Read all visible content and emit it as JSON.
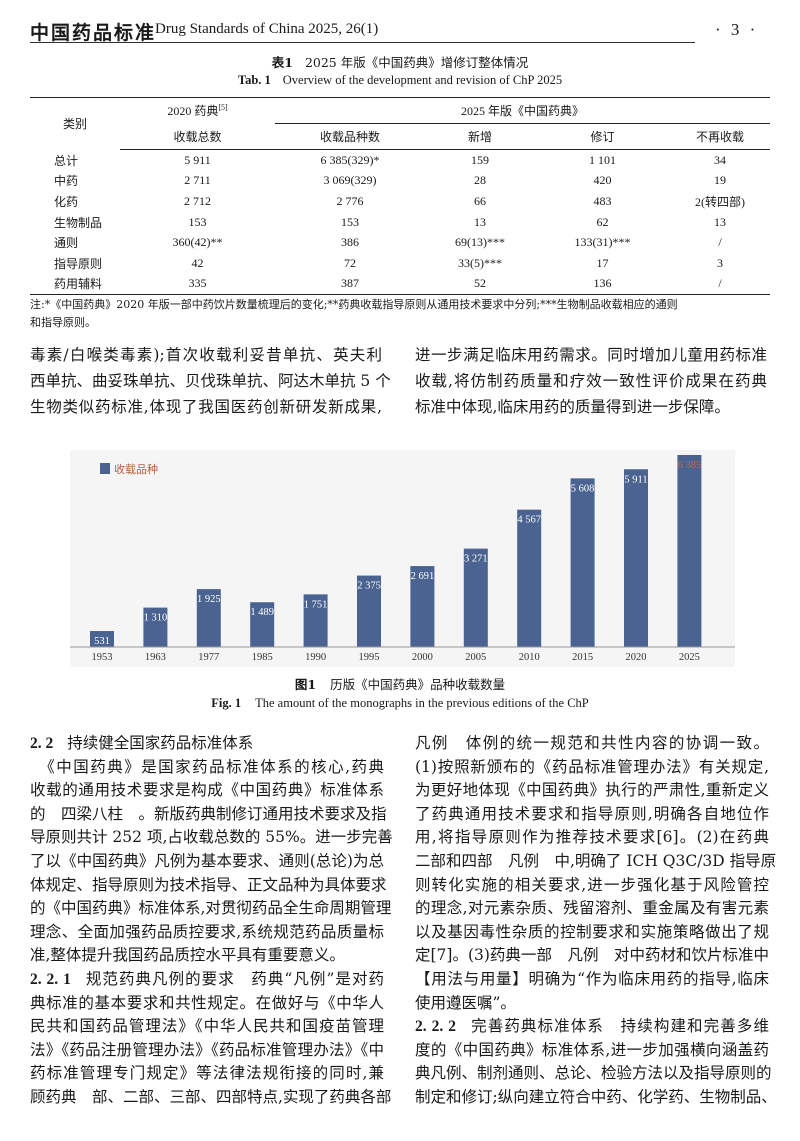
{
  "header": {
    "journal_cn": "中国药品标准",
    "journal_en": "Drug Standards of China 2025, 26(1)",
    "page": "· 3 ·"
  },
  "table": {
    "caption_cn_label": "表1",
    "caption_cn": "2025 年版《中国药典》增修订整体情况",
    "caption_en_label": "Tab. 1",
    "caption_en": "Overview of the development and revision of ChP 2025",
    "head": {
      "category": "类别",
      "col2020_top": "2020 药典",
      "col2020_ref": "[5]",
      "col2020_bottom": "收载总数",
      "group2025": "2025 年版《中国药典》",
      "cols2025": [
        "收载品种数",
        "新增",
        "修订",
        "不再收载"
      ]
    },
    "rows": [
      [
        "总计",
        "5 911",
        "6 385(329)*",
        "159",
        "1 101",
        "34"
      ],
      [
        "中药",
        "2 711",
        "3 069(329)",
        "28",
        "420",
        "19"
      ],
      [
        "化药",
        "2 712",
        "2 776",
        "66",
        "483",
        "2(转四部)"
      ],
      [
        "生物制品",
        "153",
        "153",
        "13",
        "62",
        "13"
      ],
      [
        "通则",
        "360(42)**",
        "386",
        "69(13)***",
        "133(31)***",
        "/"
      ],
      [
        "指导原则",
        "42",
        "72",
        "33(5)***",
        "17",
        "3"
      ],
      [
        "药用辅料",
        "335",
        "387",
        "52",
        "136",
        "/"
      ]
    ],
    "note_line1": "注:*《中国药典》2020 年版一部中药饮片数量梳理后的变化;**药典收载指导原则从通用技术要求中分列;***生物制品收载相应的通则",
    "note_line2": "和指导原则。"
  },
  "upper_text": {
    "left": [
      "毒素/白喉类毒素);首次收载利妥昔单抗、英夫利",
      "西单抗、曲妥珠单抗、贝伐珠单抗、阿达木单抗 5 个",
      "生物类似药标准,体现了我国医药创新研发新成果,"
    ],
    "right": [
      "进一步满足临床用药需求。同时增加儿童用药标准",
      "收载,将仿制药质量和疗效一致性评价成果在药典",
      "标准中体现,临床用药的质量得到进一步保障。"
    ]
  },
  "chart_data": {
    "type": "bar",
    "categories": [
      "1953",
      "1963",
      "1977",
      "1985",
      "1990",
      "1995",
      "2000",
      "2005",
      "2010",
      "2015",
      "2020",
      "2025"
    ],
    "series": [
      {
        "name": "收载品种",
        "values": [
          531,
          1310,
          1925,
          1489,
          1751,
          2375,
          2691,
          3271,
          4567,
          5608,
          5911,
          6385
        ]
      }
    ],
    "value_labels": [
      "531",
      "1 310",
      "1 925",
      "1 489",
      "1 751",
      "2 375",
      "2 691",
      "3 271",
      "4 567",
      "5 608",
      "5 911",
      "6 385"
    ],
    "ylim": [
      0,
      6500
    ],
    "grid": false,
    "legend": "top-left",
    "colors": {
      "bar": "#4a6391",
      "label": "#ffffff",
      "highlight_label": "#c0664a",
      "legend_text": "#b0603a",
      "background": "#f5f5f5"
    }
  },
  "figure": {
    "label_cn": "图1",
    "caption_cn": "历版《中国药典》品种收载数量",
    "label_en": "Fig. 1",
    "caption_en": "The amount of the monographs in the previous editions of the ChP"
  },
  "body_left": [
    {
      "type": "h",
      "num": "2. 2",
      "text": "持续健全国家药品标准体系"
    },
    {
      "type": "l",
      "text": "　《中国药典》是国家药品标准体系的核心,药典"
    },
    {
      "type": "l",
      "text": "收载的通用技术要求是构成《中国药典》标准体系"
    },
    {
      "type": "l",
      "text": "的　四梁八柱　。新版药典制修订通用技术要求及指"
    },
    {
      "type": "l",
      "text": "导原则共计 252 项,占收载总数的 55%。进一步完善"
    },
    {
      "type": "l",
      "text": "了以《中国药典》凡例为基本要求、通则(总论)为总"
    },
    {
      "type": "l",
      "text": "体规定、指导原则为技术指导、正文品种为具体要求"
    },
    {
      "type": "l",
      "text": "的《中国药典》标准体系,对贯彻药品全生命周期管理"
    },
    {
      "type": "l",
      "text": "理念、全面加强药品质控要求,系统规范药品质量标"
    },
    {
      "type": "e",
      "text": "准,整体提升我国药品质控水平具有重要意义。"
    },
    {
      "type": "h",
      "num": "2. 2. 1",
      "text": "规范药典凡例的要求　药典“凡例”是对药"
    },
    {
      "type": "l",
      "text": "典标准的基本要求和共性规定。在做好与《中华人"
    },
    {
      "type": "l",
      "text": "民共和国药品管理法》《中华人民共和国疫苗管理"
    },
    {
      "type": "l",
      "text": "法》《药品注册管理办法》《药品标准管理办法》《中"
    },
    {
      "type": "l",
      "text": "药标准管理专门规定》等法律法规衔接的同时,兼"
    },
    {
      "type": "l",
      "text": "顾药典　部、二部、三部、四部特点,实现了药典各部"
    }
  ],
  "body_right": [
    {
      "type": "l",
      "text": "凡例　体例的统一规范和共性内容的协调一致。"
    },
    {
      "type": "l",
      "text": "(1)按照新颁布的《药品标准管理办法》有关规定,"
    },
    {
      "type": "l",
      "text": "为更好地体现《中国药典》执行的严肃性,重新定义"
    },
    {
      "type": "l",
      "text": "了药典通用技术要求和指导原则,明确各自地位作"
    },
    {
      "type": "l",
      "text": "用,将指导原则作为推荐技术要求[6]。(2)在药典"
    },
    {
      "type": "l",
      "text": "二部和四部　凡例　中,明确了 ICH Q3C/3D 指导原"
    },
    {
      "type": "l",
      "text": "则转化实施的相关要求,进一步强化基于风险管控"
    },
    {
      "type": "l",
      "text": "的理念,对元素杂质、残留溶剂、重金属及有害元素"
    },
    {
      "type": "l",
      "text": "以及基因毒性杂质的控制要求和实施策略做出了规"
    },
    {
      "type": "l",
      "text": "定[7]。(3)药典一部　凡例　对中药材和饮片标准中"
    },
    {
      "type": "l",
      "text": "【用法与用量】明确为“作为临床用药的指导,临床"
    },
    {
      "type": "e",
      "text": "使用遵医嘱”。"
    },
    {
      "type": "h",
      "num": "2. 2. 2",
      "text": "完善药典标准体系　持续构建和完善多维"
    },
    {
      "type": "l",
      "text": "度的《中国药典》标准体系,进一步加强横向涵盖药"
    },
    {
      "type": "l",
      "text": "典凡例、制剂通则、总论、检验方法以及指导原则的"
    },
    {
      "type": "l",
      "text": "制定和修订;纵向建立符合中药、化学药、生物制品、"
    }
  ]
}
